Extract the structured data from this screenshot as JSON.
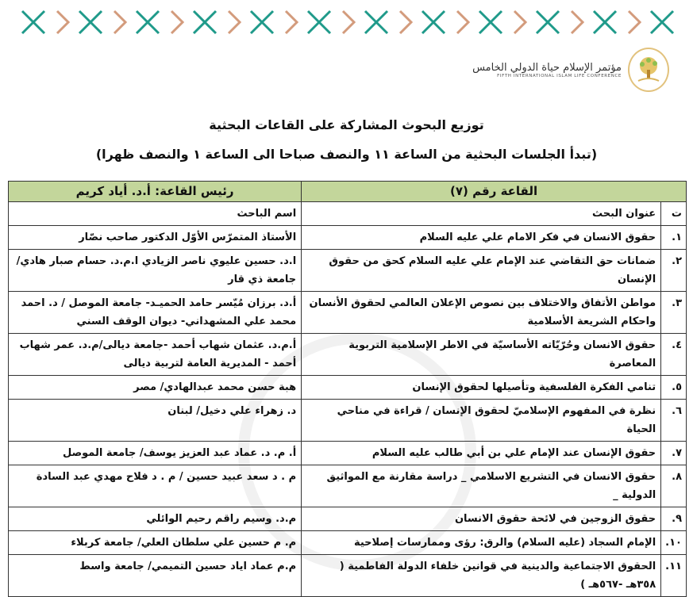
{
  "header": {
    "logo": {
      "arabic": "مؤتمر الإسلام حياة الدولي الخامس",
      "english": "FIFTH INTERNATIONAL ISLAM LIFE CONFERENCE"
    },
    "colors": {
      "teal": "#1f9a8a",
      "tan": "#d39b7c",
      "dark": "#2b2340",
      "gold": "#d9b45c",
      "header_green": "#c3d69b"
    }
  },
  "document": {
    "title": "توزيع البحوث المشاركة على القاعات البحثية",
    "subtitle": "(تبدأ الجلسات البحثية من الساعة ١١ والنصف صباحا الى الساعة ١ والنصف ظهرا)"
  },
  "table": {
    "hall_label": "القاعة رقم (٧)",
    "chair_label": "رئيس القاعة: أ.د. أياد كريم",
    "columns": {
      "number": "ت",
      "title": "عنوان البحث",
      "researcher": "اسم الباحث"
    },
    "rows": [
      {
        "n": "١.",
        "title": "حقوق الانسان في فكر الامام علي عليه السلام",
        "researcher": "الأستاذ المتمرّس الأوّل الدكتور صاحب نصّار"
      },
      {
        "n": "٢.",
        "title": "ضمانات حق التقاضي عند الإمام علي عليه السلام كحق من حقوق الإنسان",
        "researcher": "ا.د. حسين عليوي ناصر الزيادي  ا.م.د. حسام صبار هادي/ جامعة ذي قار"
      },
      {
        "n": "٣.",
        "title": "مواطن الأتفاق والاختلاف بين نصوص الإعلان العالمي لحقوق الأنسان واحكام الشريعة الأسلامية",
        "researcher": "أ.د.  برزان مُيّسر حامد الحميـد- جامعة الموصل  /  د. احمد محمد علي المشهداني- ديوان الوقف السني"
      },
      {
        "n": "٤.",
        "title": "حقوق الانسان وحُرّيّاته الأساسيّة في الاطر الإسلامية التربوية المعاصرة",
        "researcher": "أ.م.د. عثمان شهاب أحمد -جامعة ديالى/م.د. عمر شهاب أحمد - المديرية العامة لتربية ديالى"
      },
      {
        "n": "٥.",
        "title": "تنامي الفكرة الفلسفية وتأصيلها لحقوق الإنسان",
        "researcher": "هبة حسن محمد عبدالهادي/ مصر"
      },
      {
        "n": "٦.",
        "title": "نظرة في المفهوم الإسلاميّ لحقوق الإنسان / قراءة في مناحي الحياة",
        "researcher": "د. زهراء علي دخيل/ لبنان"
      },
      {
        "n": "٧.",
        "title": "حقوق الإنسان عند الإمام علي بن أبي طالب عليه السلام",
        "researcher": "أ. م. د. عماد عبد العزيز يوسف/ جامعة الموصل"
      },
      {
        "n": "٨.",
        "title": "حقوق الانسان في التشريع الاسلامي _ دراسة مقارنة مع المواثيق الدولية _",
        "researcher": "م . د سعد عبيد حسين  /  م . د فلاح مهدي عبد السادة"
      },
      {
        "n": "٩.",
        "title": "حقوق الزوجين في لائحة حقوق الانسان",
        "researcher": "م.د. وسيم راقم رحيم الوائلي"
      },
      {
        "n": "١٠.",
        "title": "الإمام السجاد (عليه السلام) والرق: رؤى وممارسات إصلاحية",
        "researcher": "م. م حسين علي سلطان العلي/ جامعة كربلاء"
      },
      {
        "n": "١١.",
        "title": "الحقوق الاجتماعية والدينية في  قوانين خلفاء الدولة الفاطمية ( ٣٥٨هـ -٥٦٧هـ )",
        "researcher": "م.م عماد اياد حسين التميمي/ جامعة واسط"
      }
    ]
  }
}
